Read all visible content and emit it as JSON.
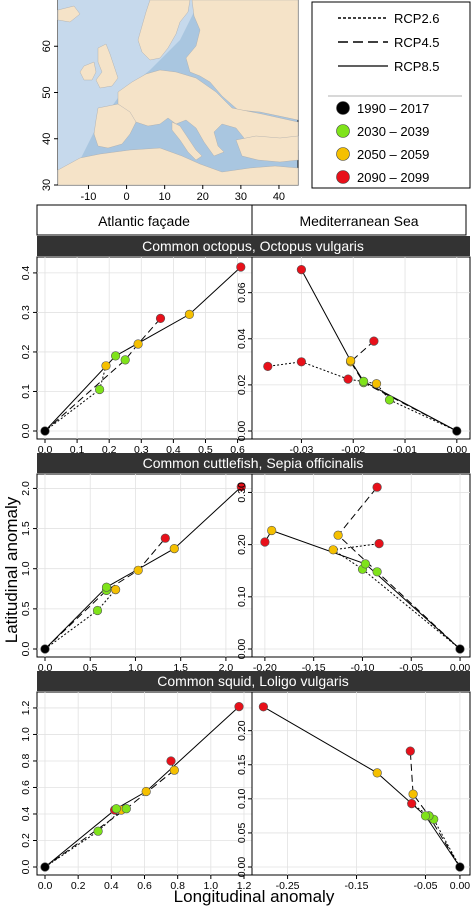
{
  "map": {
    "lat_ticks": [
      "30",
      "40",
      "50",
      "60"
    ],
    "lon_ticks": [
      "-10",
      "0",
      "10",
      "20",
      "30",
      "40"
    ],
    "land_color": "#f5e3c8",
    "sea_color": "#a9c6e0",
    "shelf_color": "#c6d9ec"
  },
  "legend": {
    "lines": [
      {
        "label": "RCP2.6",
        "style": "dotted"
      },
      {
        "label": "RCP4.5",
        "style": "dashed"
      },
      {
        "label": "RCP8.5",
        "style": "solid"
      }
    ],
    "periods": [
      {
        "label": "1990 – 2017",
        "color": "#000000"
      },
      {
        "label": "2030 – 2039",
        "color": "#7fe31a"
      },
      {
        "label": "2050 – 2059",
        "color": "#f5c000"
      },
      {
        "label": "2090 – 2099",
        "color": "#e8101a"
      }
    ]
  },
  "columns": [
    "Atlantic façade",
    "Mediterranean Sea"
  ],
  "species": [
    "Common octopus, Octopus vulgaris",
    "Common cuttlefish, Sepia officinalis",
    "Common squid, Loligo vulgaris"
  ],
  "axes": {
    "ylabel": "Latitudinal anomaly",
    "xlabel": "Longitudinal anomaly"
  },
  "chart_data": [
    {
      "type": "line",
      "species": "Common octopus, Octopus vulgaris",
      "region": "Atlantic façade",
      "xlim": [
        0,
        0.62
      ],
      "ylim": [
        0,
        0.42
      ],
      "xticks": [
        "0.0",
        "0.1",
        "0.2",
        "0.3",
        "0.4",
        "0.5",
        "0.6"
      ],
      "xtick_values": [
        0,
        0.1,
        0.2,
        0.3,
        0.4,
        0.5,
        0.6
      ],
      "yticks": [
        "0.0",
        "0.1",
        "0.2",
        "0.3",
        "0.4"
      ],
      "ytick_values": [
        0,
        0.1,
        0.2,
        0.3,
        0.4
      ],
      "series": [
        {
          "name": "RCP2.6",
          "points": [
            [
              0,
              0
            ],
            [
              0.17,
              0.105
            ],
            [
              0.19,
              0.165
            ]
          ]
        },
        {
          "name": "RCP4.5",
          "points": [
            [
              0,
              0
            ],
            [
              0.25,
              0.18
            ],
            [
              0.29,
              0.22
            ],
            [
              0.36,
              0.285
            ]
          ]
        },
        {
          "name": "RCP8.5",
          "points": [
            [
              0,
              0
            ],
            [
              0.22,
              0.19
            ],
            [
              0.45,
              0.295
            ],
            [
              0.61,
              0.415
            ]
          ]
        }
      ]
    },
    {
      "type": "line",
      "species": "Common octopus, Octopus vulgaris",
      "region": "Mediterranean Sea",
      "xlim": [
        -0.038,
        0.001
      ],
      "ylim": [
        0,
        0.072
      ],
      "xticks": [
        "-0.03",
        "-0.02",
        "-0.01",
        "0.00"
      ],
      "xtick_values": [
        -0.03,
        -0.02,
        -0.01,
        0
      ],
      "yticks": [
        "0.00",
        "0.02",
        "0.04",
        "0.06"
      ],
      "ytick_values": [
        0,
        0.02,
        0.04,
        0.06
      ],
      "series": [
        {
          "name": "RCP2.6",
          "points": [
            [
              0,
              0
            ],
            [
              -0.013,
              0.0135
            ],
            [
              -0.0155,
              0.0205
            ],
            [
              -0.021,
              0.0225
            ],
            [
              -0.03,
              0.03
            ],
            [
              -0.0365,
              0.028
            ]
          ]
        },
        {
          "name": "RCP4.5",
          "points": [
            [
              0,
              0
            ],
            [
              -0.018,
              0.021
            ],
            [
              -0.0205,
              0.03
            ],
            [
              -0.016,
              0.039
            ]
          ]
        },
        {
          "name": "RCP8.5",
          "points": [
            [
              0,
              0
            ],
            [
              -0.018,
              0.0215
            ],
            [
              -0.0205,
              0.0305
            ],
            [
              -0.03,
              0.07
            ]
          ]
        }
      ]
    },
    {
      "type": "line",
      "species": "Common cuttlefish, Sepia officinalis",
      "region": "Atlantic façade",
      "xlim": [
        0,
        2.2
      ],
      "ylim": [
        0,
        2.08
      ],
      "xticks": [
        "0.0",
        "0.5",
        "1.0",
        "1.5",
        "2.0"
      ],
      "xtick_values": [
        0,
        0.5,
        1.0,
        1.5,
        2.0
      ],
      "yticks": [
        "0.0",
        "0.5",
        "1.0",
        "1.5",
        "2.0"
      ],
      "ytick_values": [
        0,
        0.5,
        1.0,
        1.5,
        2.0
      ],
      "series": [
        {
          "name": "RCP2.6",
          "points": [
            [
              0,
              0
            ],
            [
              0.58,
              0.48
            ],
            [
              0.78,
              0.74
            ],
            [
              0.68,
              0.73
            ]
          ]
        },
        {
          "name": "RCP4.5",
          "points": [
            [
              0,
              0
            ],
            [
              0.68,
              0.73
            ],
            [
              1.03,
              0.98
            ],
            [
              1.33,
              1.38
            ]
          ]
        },
        {
          "name": "RCP8.5",
          "points": [
            [
              0,
              0
            ],
            [
              0.68,
              0.77
            ],
            [
              1.43,
              1.25
            ],
            [
              2.17,
              2.02
            ]
          ]
        }
      ]
    },
    {
      "type": "line",
      "species": "Common cuttlefish, Sepia officinalis",
      "region": "Mediterranean Sea",
      "xlim": [
        -0.205,
        0.002
      ],
      "ylim": [
        0,
        0.32
      ],
      "xticks": [
        "-0.20",
        "-0.15",
        "-0.10",
        "-0.05",
        "0.00"
      ],
      "xtick_values": [
        -0.2,
        -0.15,
        -0.1,
        -0.05,
        0
      ],
      "yticks": [
        "0.00",
        "0.10",
        "0.20",
        "0.30"
      ],
      "ytick_values": [
        0,
        0.1,
        0.2,
        0.3
      ],
      "series": [
        {
          "name": "RCP2.6",
          "points": [
            [
              0,
              0
            ],
            [
              -0.1,
              0.153
            ],
            [
              -0.13,
              0.19
            ],
            [
              -0.083,
              0.202
            ]
          ]
        },
        {
          "name": "RCP4.5",
          "points": [
            [
              0,
              0
            ],
            [
              -0.085,
              0.148
            ],
            [
              -0.125,
              0.218
            ],
            [
              -0.085,
              0.31
            ]
          ]
        },
        {
          "name": "RCP8.5",
          "points": [
            [
              0,
              0
            ],
            [
              -0.097,
              0.163
            ],
            [
              -0.193,
              0.227
            ],
            [
              -0.2,
              0.205
            ]
          ]
        }
      ]
    },
    {
      "type": "line",
      "species": "Common squid, Loligo vulgaris",
      "region": "Atlantic façade",
      "xlim": [
        0,
        1.2
      ],
      "ylim": [
        0,
        1.26
      ],
      "xticks": [
        "0.0",
        "0.2",
        "0.4",
        "0.6",
        "0.8",
        "1.0",
        "1.2"
      ],
      "xtick_values": [
        0,
        0.2,
        0.4,
        0.6,
        0.8,
        1.0,
        1.2
      ],
      "yticks": [
        "0.0",
        "0.2",
        "0.4",
        "0.6",
        "0.8",
        "1.0",
        "1.2"
      ],
      "ytick_values": [
        0,
        0.2,
        0.4,
        0.6,
        0.8,
        1.0,
        1.2
      ],
      "series": [
        {
          "name": "RCP2.6",
          "points": [
            [
              0,
              0
            ],
            [
              0.32,
              0.27
            ],
            [
              0.46,
              0.43
            ],
            [
              0.42,
              0.43
            ]
          ]
        },
        {
          "name": "RCP4.5",
          "points": [
            [
              0,
              0
            ],
            [
              0.49,
              0.44
            ],
            [
              0.78,
              0.73
            ],
            [
              0.76,
              0.8
            ]
          ]
        },
        {
          "name": "RCP8.5",
          "points": [
            [
              0,
              0
            ],
            [
              0.43,
              0.44
            ],
            [
              0.61,
              0.57
            ],
            [
              1.17,
              1.21
            ]
          ]
        }
      ]
    },
    {
      "type": "line",
      "species": "Common squid, Loligo vulgaris",
      "region": "Mediterranean Sea",
      "xlim": [
        -0.29,
        0.003
      ],
      "ylim": [
        0,
        0.245
      ],
      "xticks": [
        "-0.25",
        "-0.15",
        "-0.05",
        "0.00"
      ],
      "xtick_values": [
        -0.25,
        -0.15,
        -0.05,
        0
      ],
      "yticks": [
        "0.00",
        "0.05",
        "0.10",
        "0.15",
        "0.20"
      ],
      "ytick_values": [
        0,
        0.05,
        0.1,
        0.15,
        0.2
      ],
      "series": [
        {
          "name": "RCP2.6",
          "points": [
            [
              0,
              0
            ],
            [
              -0.038,
              0.07
            ],
            [
              -0.045,
              0.075
            ],
            [
              -0.07,
              0.093
            ]
          ]
        },
        {
          "name": "RCP4.5",
          "points": [
            [
              0,
              0
            ],
            [
              -0.045,
              0.075
            ],
            [
              -0.068,
              0.107
            ],
            [
              -0.072,
              0.17
            ]
          ]
        },
        {
          "name": "RCP8.5",
          "points": [
            [
              0,
              0
            ],
            [
              -0.05,
              0.075
            ],
            [
              -0.12,
              0.138
            ],
            [
              -0.285,
              0.235
            ]
          ]
        }
      ]
    }
  ]
}
